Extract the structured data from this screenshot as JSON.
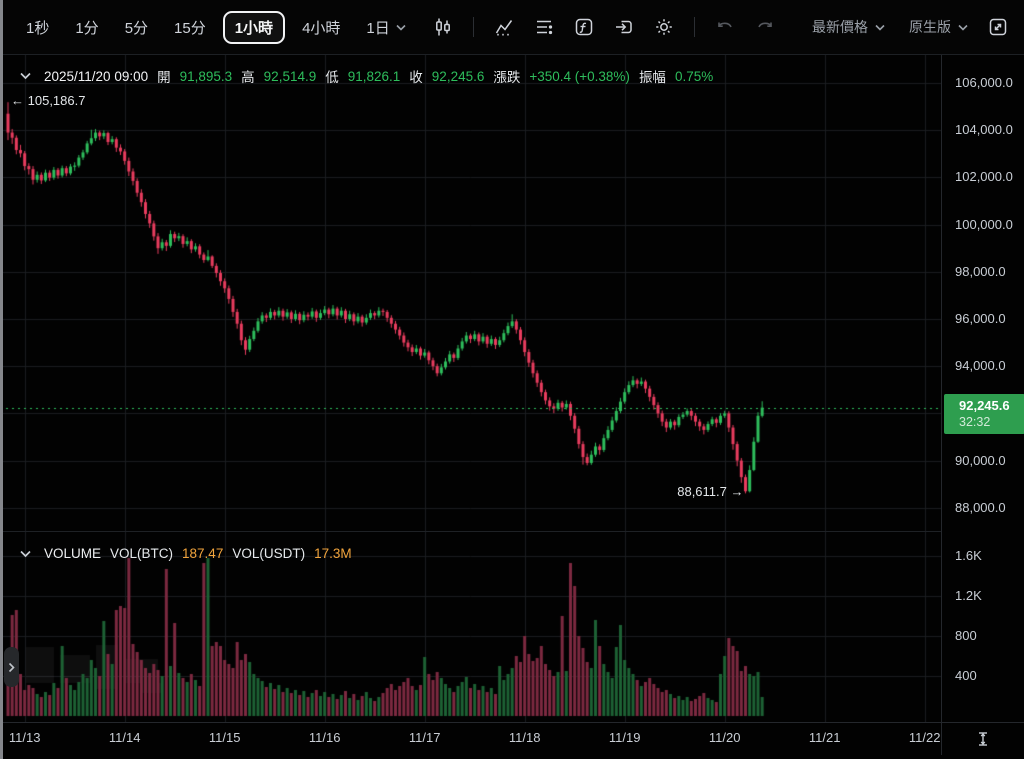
{
  "colors": {
    "up": "#2ebd5c",
    "down": "#e83c5e",
    "vol_up": "#1d6134",
    "vol_down": "#7c2940",
    "grid": "#1b1d20",
    "badge_green": "#2e9e4f",
    "accent_orange": "#f1a43d",
    "current_line": "#2fbd5c"
  },
  "toolbar": {
    "timeframes": [
      "1秒",
      "1分",
      "5分",
      "15分",
      "1小時",
      "4小時",
      "1日"
    ],
    "selected_timeframe": "1小時",
    "latest_price_label": "最新價格",
    "version_label": "原生版"
  },
  "ohlc_bar": {
    "datetime": "2025/11/20 09:00",
    "open_label": "開",
    "open": "91,895.3",
    "high_label": "高",
    "high": "92,514.9",
    "low_label": "低",
    "low": "91,826.1",
    "close_label": "收",
    "close": "92,245.6",
    "change_label": "漲跌",
    "change": "+350.4 (+0.38%)",
    "amplitude_label": "振幅",
    "amplitude": "0.75%"
  },
  "price_badge": {
    "price": "92,245.6",
    "countdown": "32:32"
  },
  "markers": {
    "high_label": "105,186.7",
    "low_label": "88,611.7"
  },
  "volume_header": {
    "title": "VOLUME",
    "btc_label": "VOL(BTC)",
    "btc_value": "187.47",
    "usdt_label": "VOL(USDT)",
    "usdt_value": "17.3M"
  },
  "axes": {
    "price_ticks": [
      {
        "label": "106,000.0",
        "value": 106000
      },
      {
        "label": "104,000.0",
        "value": 104000
      },
      {
        "label": "102,000.0",
        "value": 102000
      },
      {
        "label": "100,000.0",
        "value": 100000
      },
      {
        "label": "98,000.0",
        "value": 98000
      },
      {
        "label": "96,000.0",
        "value": 96000
      },
      {
        "label": "94,000.0",
        "value": 94000
      },
      {
        "label": "92,000.0",
        "value": 92000
      },
      {
        "label": "90,000.0",
        "value": 90000
      },
      {
        "label": "88,000.0",
        "value": 88000
      }
    ],
    "volume_ticks": [
      {
        "label": "1.6K",
        "value": 1600
      },
      {
        "label": "1.2K",
        "value": 1200
      },
      {
        "label": "800",
        "value": 800
      },
      {
        "label": "400",
        "value": 400
      }
    ],
    "time_ticks": [
      {
        "label": "11/13",
        "index": 4
      },
      {
        "label": "11/14",
        "index": 28
      },
      {
        "label": "11/15",
        "index": 52
      },
      {
        "label": "11/16",
        "index": 76
      },
      {
        "label": "11/17",
        "index": 100
      },
      {
        "label": "11/18",
        "index": 124
      },
      {
        "label": "11/19",
        "index": 148
      },
      {
        "label": "11/20",
        "index": 172
      },
      {
        "label": "11/21",
        "index": 196
      },
      {
        "label": "11/22",
        "index": 220
      }
    ]
  },
  "chart_data": {
    "type": "candlestick",
    "interval": "1小時",
    "price_ylim": [
      87300,
      106800
    ],
    "volume_ylim": [
      0,
      1850
    ],
    "current_price": 92245.6,
    "current_price_label": "92,245.6",
    "high_marker": {
      "price": 105186.7,
      "index": 0
    },
    "low_marker": {
      "price": 88611.7,
      "index": 177
    },
    "candles": [
      [
        104700,
        105186.7,
        103580,
        103900
      ],
      [
        103900,
        104050,
        103420,
        103680
      ],
      [
        103680,
        103780,
        102980,
        103160
      ],
      [
        103160,
        103380,
        102850,
        103020
      ],
      [
        103020,
        103120,
        102300,
        102480
      ],
      [
        102480,
        102600,
        102120,
        102350
      ],
      [
        102350,
        102480,
        101700,
        101900
      ],
      [
        101900,
        102250,
        101780,
        102110
      ],
      [
        102110,
        102210,
        101720,
        101870
      ],
      [
        101870,
        102330,
        101800,
        102200
      ],
      [
        102200,
        102300,
        101850,
        101990
      ],
      [
        101990,
        102440,
        101900,
        102320
      ],
      [
        102320,
        102400,
        101950,
        102080
      ],
      [
        102080,
        102500,
        102000,
        102390
      ],
      [
        102390,
        102480,
        102050,
        102170
      ],
      [
        102170,
        102570,
        102090,
        102460
      ],
      [
        102460,
        102640,
        102280,
        102500
      ],
      [
        102500,
        102950,
        102420,
        102840
      ],
      [
        102840,
        103170,
        102740,
        103060
      ],
      [
        103060,
        103550,
        102980,
        103440
      ],
      [
        103440,
        104020,
        103360,
        103660
      ],
      [
        103660,
        104050,
        103540,
        103900
      ],
      [
        103900,
        103980,
        103580,
        103740
      ],
      [
        103740,
        103990,
        103620,
        103880
      ],
      [
        103880,
        103940,
        103370,
        103500
      ],
      [
        103500,
        103750,
        103400,
        103620
      ],
      [
        103620,
        103700,
        103080,
        103260
      ],
      [
        103260,
        103400,
        102950,
        103100
      ],
      [
        103100,
        103200,
        102540,
        102700
      ],
      [
        102700,
        102840,
        102060,
        102250
      ],
      [
        102250,
        102380,
        101660,
        101850
      ],
      [
        101850,
        101960,
        101180,
        101350
      ],
      [
        101350,
        101500,
        100760,
        100950
      ],
      [
        100950,
        101080,
        100260,
        100450
      ],
      [
        100450,
        100580,
        99860,
        100050
      ],
      [
        100050,
        100170,
        99320,
        99500
      ],
      [
        99500,
        99640,
        98760,
        99000
      ],
      [
        99000,
        99400,
        98900,
        99250
      ],
      [
        99250,
        99350,
        98880,
        99100
      ],
      [
        99100,
        99760,
        99020,
        99600
      ],
      [
        99600,
        99700,
        99260,
        99420
      ],
      [
        99420,
        99650,
        99300,
        99510
      ],
      [
        99510,
        99590,
        99020,
        99180
      ],
      [
        99180,
        99460,
        99080,
        99300
      ],
      [
        99300,
        99380,
        98790,
        98950
      ],
      [
        98950,
        99210,
        98850,
        99080
      ],
      [
        99080,
        99170,
        98570,
        98730
      ],
      [
        98730,
        98820,
        98380,
        98500
      ],
      [
        98500,
        98920,
        98440,
        98650
      ],
      [
        98650,
        98700,
        98160,
        98250
      ],
      [
        98250,
        98360,
        97760,
        97950
      ],
      [
        97950,
        98070,
        97410,
        97600
      ],
      [
        97600,
        97720,
        97110,
        97300
      ],
      [
        97300,
        97420,
        96650,
        96850
      ],
      [
        96850,
        96980,
        96090,
        96300
      ],
      [
        96300,
        96430,
        95590,
        95800
      ],
      [
        95800,
        95930,
        94890,
        95100
      ],
      [
        95100,
        95230,
        94480,
        94700
      ],
      [
        94700,
        95290,
        94600,
        95150
      ],
      [
        95150,
        95640,
        95060,
        95500
      ],
      [
        95500,
        96040,
        95420,
        95900
      ],
      [
        95900,
        96290,
        95800,
        96150
      ],
      [
        96150,
        96240,
        95870,
        96050
      ],
      [
        96050,
        96450,
        95960,
        96300
      ],
      [
        96300,
        96390,
        95980,
        96150
      ],
      [
        96150,
        96500,
        96060,
        96350
      ],
      [
        96350,
        96440,
        95930,
        96100
      ],
      [
        96100,
        96420,
        96010,
        96280
      ],
      [
        96280,
        96360,
        95830,
        96000
      ],
      [
        96000,
        96370,
        95910,
        96220
      ],
      [
        96220,
        96300,
        95780,
        95950
      ],
      [
        95950,
        96330,
        95860,
        96180
      ],
      [
        96180,
        96280,
        95940,
        96100
      ],
      [
        96100,
        96470,
        96010,
        96320
      ],
      [
        96320,
        96400,
        95880,
        96050
      ],
      [
        96050,
        96400,
        95960,
        96250
      ],
      [
        96250,
        96550,
        96160,
        96400
      ],
      [
        96400,
        96480,
        96030,
        96200
      ],
      [
        96200,
        96590,
        96110,
        96440
      ],
      [
        96440,
        96520,
        95980,
        96150
      ],
      [
        96150,
        96500,
        96060,
        96350
      ],
      [
        96350,
        96430,
        95830,
        96000
      ],
      [
        96000,
        96350,
        95910,
        96200
      ],
      [
        96200,
        96280,
        95730,
        95900
      ],
      [
        95900,
        96250,
        95810,
        96100
      ],
      [
        96100,
        96180,
        95680,
        95850
      ],
      [
        95850,
        96200,
        95760,
        96050
      ],
      [
        96050,
        96400,
        95960,
        96250
      ],
      [
        96250,
        96330,
        95990,
        96150
      ],
      [
        96150,
        96500,
        96060,
        96350
      ],
      [
        96350,
        96440,
        96130,
        96300
      ],
      [
        96300,
        96380,
        95880,
        96050
      ],
      [
        96050,
        96160,
        95630,
        95800
      ],
      [
        95800,
        95920,
        95380,
        95550
      ],
      [
        95550,
        95670,
        95130,
        95300
      ],
      [
        95300,
        95430,
        94830,
        95000
      ],
      [
        95000,
        95120,
        94630,
        94800
      ],
      [
        94800,
        94920,
        94430,
        94600
      ],
      [
        94600,
        94900,
        94510,
        94750
      ],
      [
        94750,
        94830,
        94280,
        94450
      ],
      [
        94450,
        94730,
        94360,
        94580
      ],
      [
        94580,
        94660,
        94080,
        94250
      ],
      [
        94250,
        94360,
        93830,
        94000
      ],
      [
        94000,
        94110,
        93570,
        93700
      ],
      [
        93700,
        94100,
        93610,
        93950
      ],
      [
        93950,
        94350,
        93860,
        94200
      ],
      [
        94200,
        94650,
        94110,
        94500
      ],
      [
        94500,
        94580,
        94180,
        94350
      ],
      [
        94350,
        94900,
        94260,
        94750
      ],
      [
        94750,
        95200,
        94660,
        95050
      ],
      [
        95050,
        95450,
        94960,
        95300
      ],
      [
        95300,
        95380,
        94980,
        95150
      ],
      [
        95150,
        95500,
        95060,
        95350
      ],
      [
        95350,
        95430,
        94880,
        95050
      ],
      [
        95050,
        95400,
        94960,
        95250
      ],
      [
        95250,
        95330,
        94780,
        94950
      ],
      [
        94950,
        95300,
        94860,
        95150
      ],
      [
        95150,
        95230,
        94730,
        94900
      ],
      [
        94900,
        95250,
        94810,
        95100
      ],
      [
        95100,
        95550,
        95010,
        95400
      ],
      [
        95400,
        95850,
        95310,
        95700
      ],
      [
        95700,
        96200,
        95620,
        95900
      ],
      [
        95900,
        95990,
        95380,
        95550
      ],
      [
        95550,
        95660,
        94920,
        95100
      ],
      [
        95100,
        95220,
        94420,
        94600
      ],
      [
        94600,
        94720,
        93970,
        94150
      ],
      [
        94150,
        94270,
        93520,
        93700
      ],
      [
        93700,
        93820,
        93120,
        93300
      ],
      [
        93300,
        93420,
        92720,
        92900
      ],
      [
        92900,
        93010,
        92380,
        92550
      ],
      [
        92550,
        92680,
        92120,
        92300
      ],
      [
        92300,
        92430,
        92010,
        92200
      ],
      [
        92200,
        92580,
        92110,
        92450
      ],
      [
        92450,
        92530,
        92080,
        92250
      ],
      [
        92250,
        92550,
        92160,
        92400
      ],
      [
        92400,
        92500,
        91710,
        91900
      ],
      [
        91900,
        92010,
        91160,
        91350
      ],
      [
        91350,
        91470,
        90510,
        90700
      ],
      [
        90700,
        90820,
        89830,
        90150
      ],
      [
        90150,
        90300,
        89800,
        89900
      ],
      [
        89900,
        90420,
        89820,
        90250
      ],
      [
        90250,
        90760,
        90160,
        90600
      ],
      [
        90600,
        90690,
        90250,
        90450
      ],
      [
        90450,
        91110,
        90360,
        90950
      ],
      [
        90950,
        91460,
        90860,
        91300
      ],
      [
        91300,
        91860,
        91210,
        91700
      ],
      [
        91700,
        92260,
        91610,
        92100
      ],
      [
        92100,
        92660,
        92010,
        92500
      ],
      [
        92500,
        93060,
        92410,
        92900
      ],
      [
        92900,
        93360,
        92810,
        93200
      ],
      [
        93200,
        93580,
        93110,
        93400
      ],
      [
        93400,
        93480,
        93060,
        93250
      ],
      [
        93250,
        93520,
        93160,
        93350
      ],
      [
        93350,
        93430,
        92860,
        93050
      ],
      [
        93050,
        93170,
        92510,
        92700
      ],
      [
        92700,
        92820,
        92160,
        92350
      ],
      [
        92350,
        92470,
        91810,
        92000
      ],
      [
        92000,
        92120,
        91460,
        91650
      ],
      [
        91650,
        91770,
        91210,
        91400
      ],
      [
        91400,
        91760,
        91310,
        91650
      ],
      [
        91650,
        91730,
        91310,
        91500
      ],
      [
        91500,
        91960,
        91410,
        91850
      ],
      [
        91850,
        92060,
        91760,
        91950
      ],
      [
        91950,
        92210,
        91860,
        92100
      ],
      [
        92100,
        92180,
        91710,
        91900
      ],
      [
        91900,
        92010,
        91460,
        91650
      ],
      [
        91650,
        91760,
        91260,
        91450
      ],
      [
        91450,
        91560,
        91110,
        91300
      ],
      [
        91300,
        91660,
        91210,
        91550
      ],
      [
        91550,
        91860,
        91460,
        91750
      ],
      [
        91750,
        91830,
        91410,
        91600
      ],
      [
        91600,
        92010,
        91510,
        91900
      ],
      [
        91900,
        92110,
        91810,
        92000
      ],
      [
        92000,
        92090,
        91210,
        91400
      ],
      [
        91400,
        91510,
        90460,
        90700
      ],
      [
        90700,
        90810,
        89760,
        90000
      ],
      [
        90000,
        90110,
        89060,
        89300
      ],
      [
        89300,
        89410,
        88611.7,
        88700
      ],
      [
        88700,
        89800,
        88650,
        89600
      ],
      [
        89600,
        90990,
        89550,
        90800
      ],
      [
        90800,
        92050,
        90750,
        91900
      ],
      [
        91895.3,
        92514.9,
        91826.1,
        92245.6
      ]
    ],
    "volumes": [
      600,
      1010,
      1060,
      420,
      260,
      310,
      280,
      220,
      190,
      240,
      210,
      330,
      280,
      700,
      380,
      310,
      260,
      340,
      420,
      380,
      560,
      480,
      400,
      950,
      620,
      520,
      1060,
      1100,
      1080,
      1580,
      720,
      640,
      560,
      480,
      430,
      520,
      460,
      400,
      1470,
      500,
      930,
      430,
      380,
      340,
      420,
      360,
      300,
      1530,
      1580,
      700,
      740,
      700,
      560,
      520,
      480,
      740,
      560,
      620,
      540,
      420,
      380,
      350,
      290,
      330,
      270,
      310,
      240,
      280,
      230,
      260,
      210,
      250,
      190,
      230,
      260,
      200,
      240,
      190,
      220,
      170,
      210,
      250,
      180,
      220,
      160,
      200,
      240,
      180,
      150,
      190,
      230,
      280,
      320,
      260,
      300,
      340,
      380,
      300,
      260,
      310,
      590,
      420,
      360,
      440,
      380,
      320,
      280,
      240,
      300,
      340,
      390,
      280,
      320,
      260,
      300,
      240,
      280,
      220,
      500,
      360,
      420,
      480,
      600,
      540,
      800,
      620,
      550,
      580,
      700,
      520,
      460,
      400,
      440,
      1000,
      450,
      1530,
      1300,
      800,
      680,
      540,
      480,
      960,
      700,
      520,
      440,
      380,
      690,
      910,
      560,
      480,
      420,
      360,
      300,
      340,
      380,
      320,
      280,
      240,
      260,
      220,
      180,
      200,
      160,
      190,
      150,
      170,
      200,
      230,
      180,
      160,
      140,
      420,
      600,
      780,
      700,
      650,
      450,
      500,
      420,
      400,
      440,
      190
    ]
  }
}
